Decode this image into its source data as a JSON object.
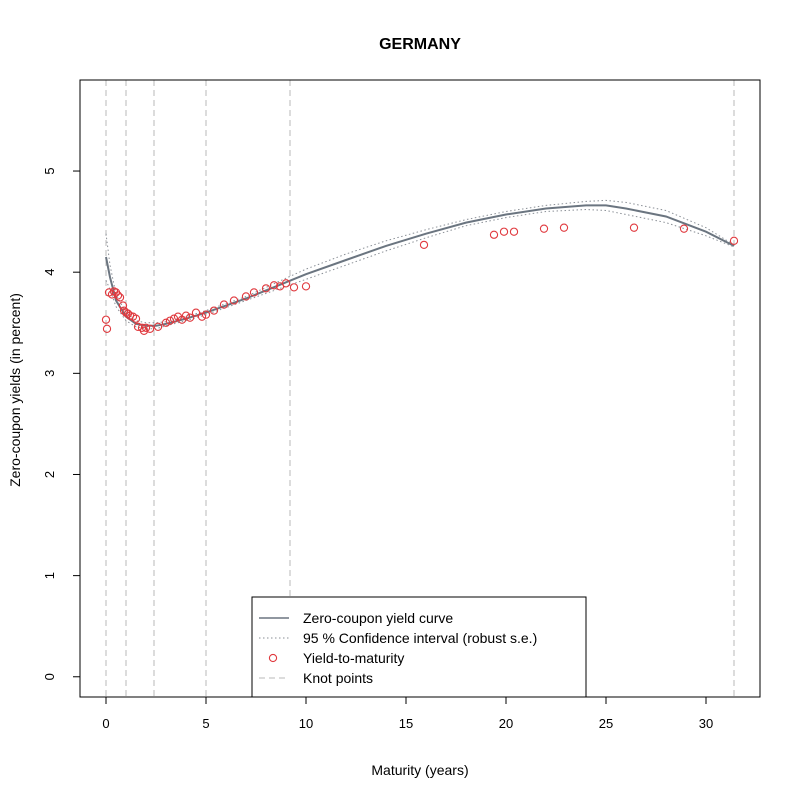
{
  "chart_data": {
    "type": "line",
    "title": "GERMANY",
    "xlabel": "Maturity (years)",
    "ylabel": "Zero-coupon yields (in percent)",
    "xlim": [
      -1.3,
      32.7
    ],
    "ylim": [
      -0.2,
      5.9
    ],
    "xticks": [
      0,
      5,
      10,
      15,
      20,
      25,
      30
    ],
    "yticks": [
      0,
      1,
      2,
      3,
      4,
      5
    ],
    "grid": false,
    "legend_position": "bottom-center",
    "colors": {
      "curve": "#6b7580",
      "ci": "#8a8f96",
      "ytm": "#e0393e",
      "knots": "#b8b8b8",
      "frame": "#000000"
    },
    "legend": [
      {
        "label": "Zero-coupon yield curve",
        "style": "solid"
      },
      {
        "label": "95 % Confidence interval (robust s.e.)",
        "style": "dotted"
      },
      {
        "label": "Yield-to-maturity",
        "style": "circle"
      },
      {
        "label": "Knot points",
        "style": "dashed"
      }
    ],
    "knot_points": [
      0.0,
      1.0,
      2.4,
      5.0,
      9.2,
      31.4
    ],
    "series": [
      {
        "name": "Zero-coupon yield curve",
        "style": "solid",
        "x": [
          0.0,
          0.2,
          0.5,
          1.0,
          1.5,
          2.0,
          2.5,
          3,
          4,
          5,
          6,
          7,
          8,
          9,
          10,
          12,
          14,
          16,
          18,
          20,
          22,
          24,
          25,
          26,
          28,
          30,
          31.4
        ],
        "y": [
          4.15,
          3.95,
          3.72,
          3.56,
          3.49,
          3.47,
          3.47,
          3.49,
          3.54,
          3.6,
          3.67,
          3.74,
          3.82,
          3.9,
          3.98,
          4.12,
          4.26,
          4.38,
          4.49,
          4.57,
          4.63,
          4.66,
          4.66,
          4.63,
          4.55,
          4.4,
          4.26
        ]
      },
      {
        "name": "95 % Confidence interval upper",
        "style": "dotted",
        "x": [
          0.0,
          0.2,
          0.5,
          1.0,
          1.5,
          2.0,
          2.5,
          3,
          4,
          5,
          6,
          7,
          8,
          9,
          10,
          12,
          14,
          16,
          18,
          20,
          22,
          24,
          25,
          26,
          28,
          30,
          31.4
        ],
        "y": [
          4.38,
          4.07,
          3.78,
          3.6,
          3.52,
          3.5,
          3.5,
          3.51,
          3.56,
          3.62,
          3.69,
          3.76,
          3.85,
          3.94,
          4.03,
          4.18,
          4.31,
          4.42,
          4.52,
          4.6,
          4.66,
          4.7,
          4.71,
          4.69,
          4.61,
          4.44,
          4.27
        ]
      },
      {
        "name": "95 % Confidence interval lower",
        "style": "dotted",
        "x": [
          0.0,
          0.2,
          0.5,
          1.0,
          1.5,
          2.0,
          2.5,
          3,
          4,
          5,
          6,
          7,
          8,
          9,
          10,
          12,
          14,
          16,
          18,
          20,
          22,
          24,
          25,
          26,
          28,
          30,
          31.4
        ],
        "y": [
          3.92,
          3.83,
          3.66,
          3.52,
          3.46,
          3.44,
          3.44,
          3.47,
          3.52,
          3.58,
          3.65,
          3.72,
          3.79,
          3.86,
          3.93,
          4.07,
          4.21,
          4.34,
          4.46,
          4.54,
          4.6,
          4.62,
          4.61,
          4.57,
          4.49,
          4.36,
          4.25
        ]
      }
    ],
    "points": {
      "name": "Yield-to-maturity",
      "x": [
        0.0,
        0.05,
        0.15,
        0.3,
        0.4,
        0.5,
        0.6,
        0.7,
        0.85,
        0.9,
        1.0,
        1.1,
        1.2,
        1.35,
        1.5,
        1.6,
        1.8,
        1.9,
        2.0,
        2.2,
        2.6,
        3.0,
        3.2,
        3.4,
        3.6,
        3.8,
        4.0,
        4.2,
        4.5,
        4.8,
        5.0,
        5.4,
        5.9,
        6.4,
        7.0,
        7.4,
        8.0,
        8.4,
        8.7,
        9.0,
        9.4,
        10.0,
        15.9,
        19.4,
        19.9,
        20.4,
        21.9,
        22.9,
        26.4,
        28.9,
        31.4
      ],
      "y": [
        3.53,
        3.44,
        3.8,
        3.78,
        3.81,
        3.8,
        3.77,
        3.75,
        3.67,
        3.62,
        3.6,
        3.59,
        3.57,
        3.56,
        3.54,
        3.46,
        3.45,
        3.42,
        3.45,
        3.44,
        3.46,
        3.5,
        3.52,
        3.54,
        3.56,
        3.53,
        3.57,
        3.55,
        3.6,
        3.56,
        3.58,
        3.62,
        3.68,
        3.72,
        3.76,
        3.8,
        3.84,
        3.87,
        3.86,
        3.89,
        3.85,
        3.86,
        4.27,
        4.37,
        4.4,
        4.4,
        4.43,
        4.44,
        4.44,
        4.43,
        4.31
      ]
    }
  }
}
